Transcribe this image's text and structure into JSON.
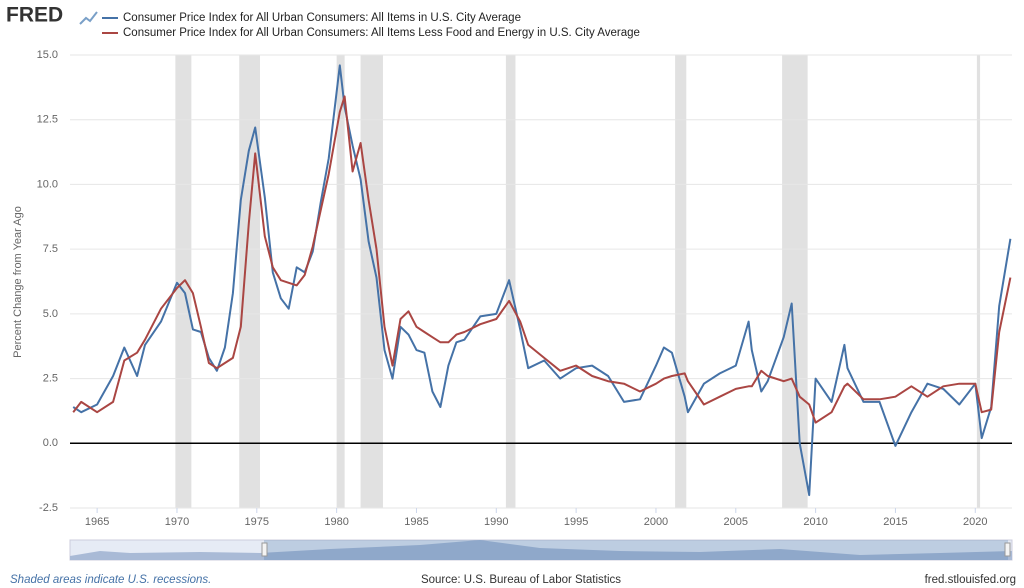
{
  "logo": "FRED",
  "chart_data": {
    "type": "line",
    "x": [
      1963.5,
      1964,
      1965,
      1966,
      1966.7,
      1967.5,
      1968,
      1969,
      1970,
      1970.5,
      1971,
      1971.5,
      1972,
      1972.5,
      1973,
      1973.5,
      1974,
      1974.5,
      1974.9,
      1975.5,
      1976,
      1976.5,
      1977,
      1977.5,
      1978,
      1978.5,
      1979,
      1979.5,
      1980.2,
      1980.5,
      1981,
      1981.5,
      1982,
      1982.5,
      1983,
      1983.5,
      1984,
      1984.5,
      1985,
      1985.5,
      1986,
      1986.5,
      1987,
      1987.5,
      1988,
      1989,
      1990,
      1990.8,
      1991.5,
      1992,
      1993,
      1994,
      1995,
      1996,
      1997,
      1998,
      1999,
      2000,
      2000.5,
      2001,
      2001.8,
      2002,
      2003,
      2004,
      2005,
      2005.8,
      2006,
      2006.6,
      2007,
      2008,
      2008.5,
      2009,
      2009.6,
      2010,
      2011,
      2011.8,
      2012,
      2013,
      2014,
      2015,
      2016,
      2017,
      2018,
      2019,
      2020,
      2020.4,
      2021,
      2021.5,
      2022.2
    ],
    "series": [
      {
        "name": "Consumer Price Index for All Urban Consumers: All Items in U.S. City Average",
        "color": "#4572a7",
        "values": [
          1.4,
          1.2,
          1.5,
          2.6,
          3.7,
          2.6,
          3.8,
          4.7,
          6.2,
          5.8,
          4.4,
          4.3,
          3.3,
          2.8,
          3.7,
          5.8,
          9.4,
          11.3,
          12.2,
          9.5,
          6.6,
          5.6,
          5.2,
          6.8,
          6.6,
          7.4,
          9.3,
          11.0,
          14.6,
          13.0,
          11.5,
          10.2,
          7.8,
          6.4,
          3.6,
          2.5,
          4.5,
          4.2,
          3.6,
          3.5,
          2.0,
          1.4,
          3.0,
          3.9,
          4.0,
          4.9,
          5.0,
          6.3,
          4.4,
          2.9,
          3.2,
          2.5,
          2.9,
          3.0,
          2.6,
          1.6,
          1.7,
          3.0,
          3.7,
          3.5,
          1.8,
          1.2,
          2.3,
          2.7,
          3.0,
          4.7,
          3.6,
          2.0,
          2.4,
          4.1,
          5.4,
          0.0,
          -2.0,
          2.5,
          1.6,
          3.8,
          2.9,
          1.6,
          1.6,
          -0.1,
          1.2,
          2.3,
          2.1,
          1.5,
          2.3,
          0.2,
          1.4,
          5.3,
          7.9
        ]
      },
      {
        "name": "Consumer Price Index for All Urban Consumers: All Items Less Food and Energy in U.S. City Average",
        "color": "#aa4643",
        "values": [
          1.2,
          1.6,
          1.2,
          1.6,
          3.2,
          3.5,
          4.0,
          5.2,
          6.0,
          6.3,
          5.8,
          4.5,
          3.1,
          2.9,
          3.1,
          3.3,
          4.5,
          8.5,
          11.2,
          8.0,
          6.8,
          6.3,
          6.2,
          6.1,
          6.5,
          7.6,
          9.0,
          10.4,
          12.8,
          13.4,
          10.5,
          11.6,
          9.4,
          7.5,
          4.5,
          3.0,
          4.8,
          5.1,
          4.5,
          4.3,
          4.1,
          3.9,
          3.9,
          4.2,
          4.3,
          4.6,
          4.8,
          5.5,
          4.7,
          3.8,
          3.3,
          2.8,
          3.0,
          2.6,
          2.4,
          2.3,
          2.0,
          2.3,
          2.5,
          2.6,
          2.7,
          2.4,
          1.5,
          1.8,
          2.1,
          2.2,
          2.2,
          2.8,
          2.6,
          2.4,
          2.5,
          1.8,
          1.5,
          0.8,
          1.2,
          2.2,
          2.3,
          1.7,
          1.7,
          1.8,
          2.2,
          1.8,
          2.2,
          2.3,
          2.3,
          1.2,
          1.3,
          4.3,
          6.4
        ]
      }
    ],
    "recessions": [
      [
        1969.9,
        1970.9
      ],
      [
        1973.9,
        1975.2
      ],
      [
        1980.0,
        1980.5
      ],
      [
        1981.5,
        1982.9
      ],
      [
        1990.6,
        1991.2
      ],
      [
        2001.2,
        2001.9
      ],
      [
        2007.9,
        2009.5
      ],
      [
        2020.1,
        2020.3
      ]
    ],
    "recession_color": "#e1e1e1",
    "ylabel": "Percent Change from Year Ago",
    "xlim": [
      1963.3,
      2022.3
    ],
    "xticks": [
      1965,
      1970,
      1975,
      1980,
      1985,
      1990,
      1995,
      2000,
      2005,
      2010,
      2015,
      2020
    ],
    "ylim": [
      -2.5,
      15
    ],
    "yticks": [
      -2.5,
      {
        "value": 0,
        "label": "0.0"
      },
      2.5,
      {
        "value": 5,
        "label": "5.0"
      },
      7.5,
      {
        "value": 10,
        "label": "10.0"
      },
      12.5,
      {
        "value": 15,
        "label": "15.0"
      }
    ],
    "grid": true
  },
  "footer": {
    "note": "Shaded areas indicate U.S. recessions.",
    "source": "Source: U.S. Bureau of Labor Statistics",
    "site": "fred.stlouisfed.org"
  }
}
